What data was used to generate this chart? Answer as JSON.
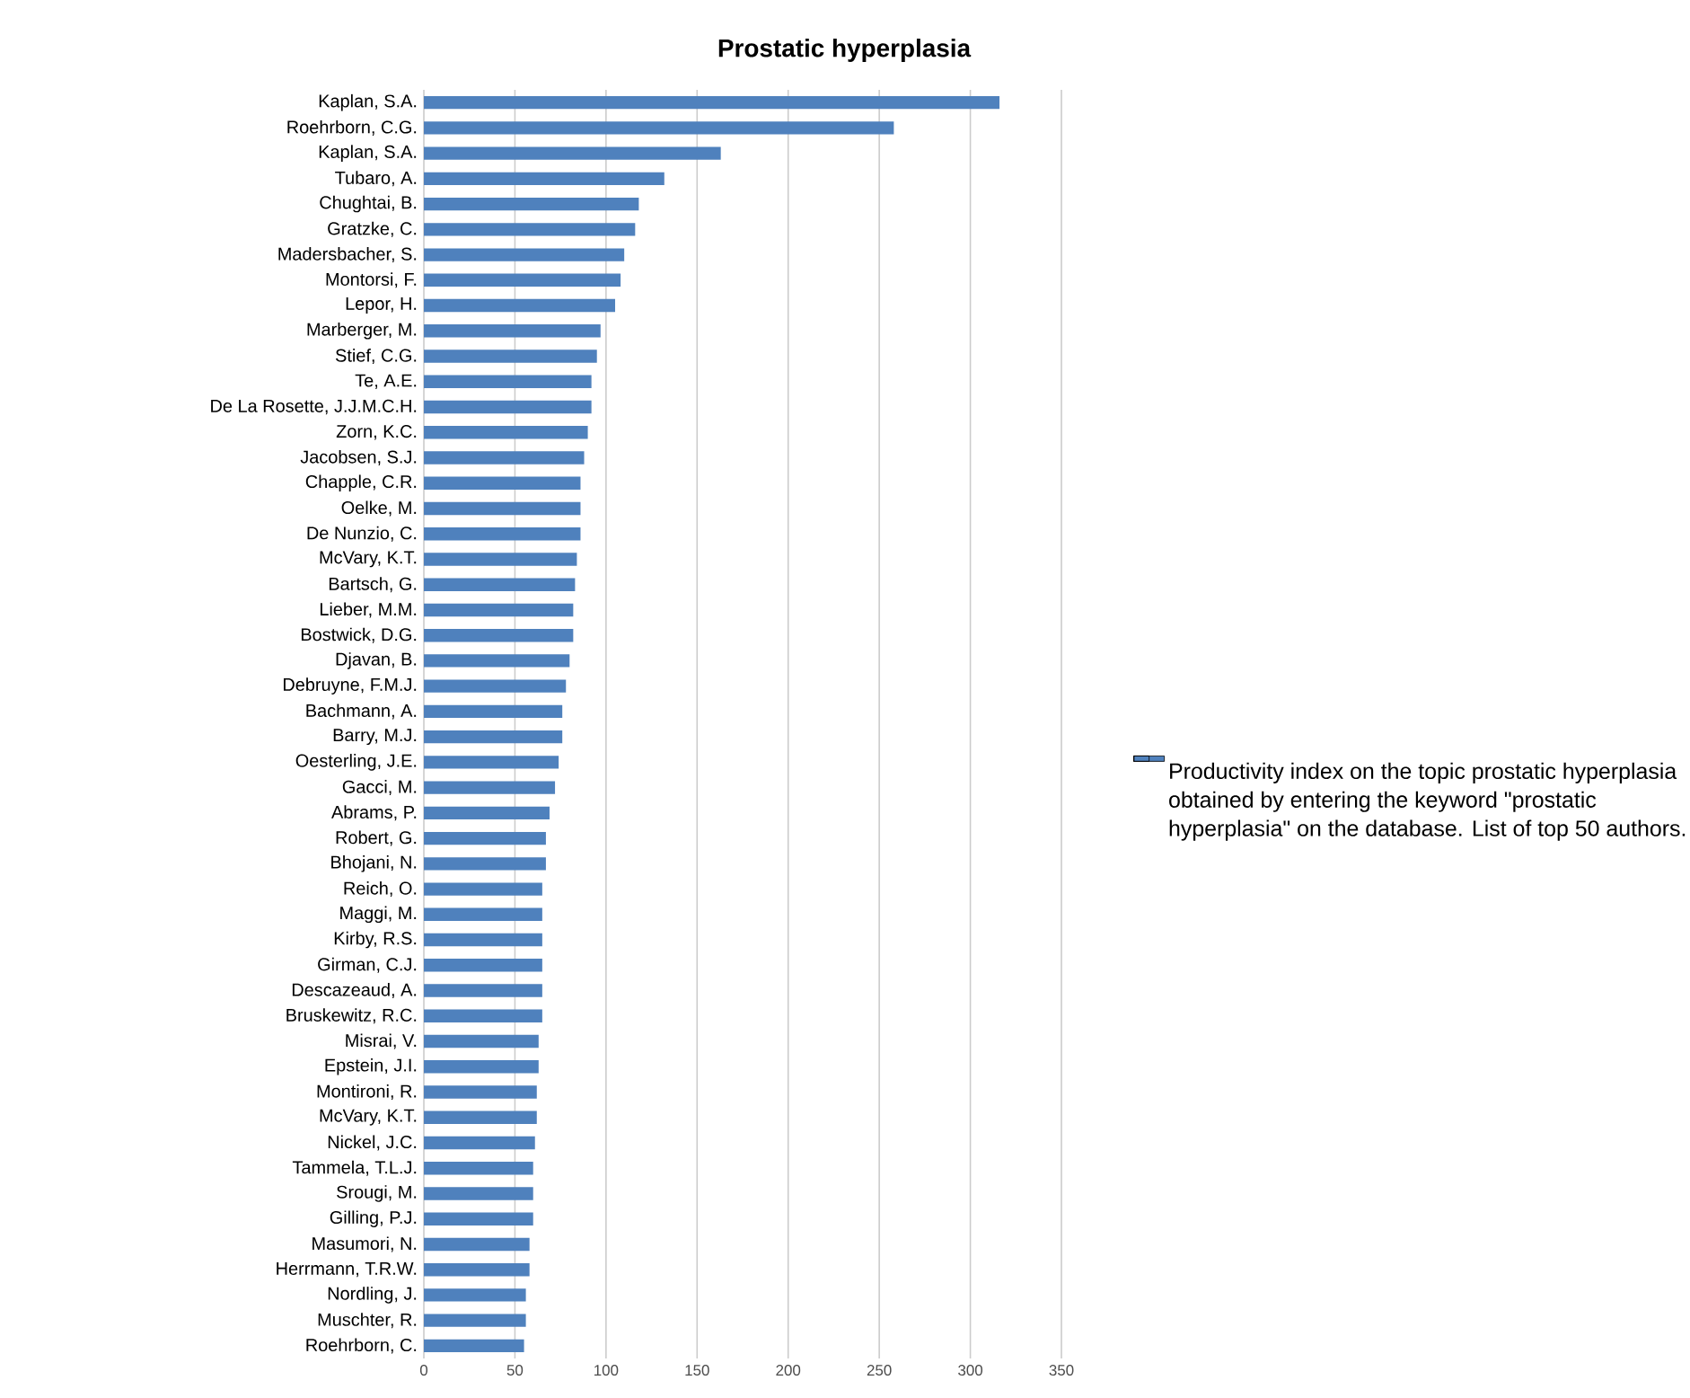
{
  "chart_data": {
    "type": "bar",
    "orientation": "horizontal",
    "title": "Prostatic hyperplasia",
    "categories": [
      "Kaplan, S.A.",
      "Roehrborn, C.G.",
      "Kaplan, S.A.",
      "Tubaro, A.",
      "Chughtai, B.",
      "Gratzke, C.",
      "Madersbacher, S.",
      "Montorsi, F.",
      "Lepor, H.",
      "Marberger, M.",
      "Stief, C.G.",
      "Te, A.E.",
      "De La Rosette, J.J.M.C.H.",
      "Zorn, K.C.",
      "Jacobsen, S.J.",
      "Chapple, C.R.",
      "Oelke, M.",
      "De Nunzio, C.",
      "McVary, K.T.",
      "Bartsch, G.",
      "Lieber, M.M.",
      "Bostwick, D.G.",
      "Djavan, B.",
      "Debruyne, F.M.J.",
      "Bachmann, A.",
      "Barry, M.J.",
      "Oesterling, J.E.",
      "Gacci, M.",
      "Abrams, P.",
      "Robert, G.",
      "Bhojani, N.",
      "Reich, O.",
      "Maggi, M.",
      "Kirby, R.S.",
      "Girman, C.J.",
      "Descazeaud, A.",
      "Bruskewitz, R.C.",
      "Misrai, V.",
      "Epstein, J.I.",
      "Montironi, R.",
      "McVary, K.T.",
      "Nickel, J.C.",
      "Tammela, T.L.J.",
      "Srougi, M.",
      "Gilling, P.J.",
      "Masumori, N.",
      "Herrmann, T.R.W.",
      "Nordling, J.",
      "Muschter, R.",
      "Roehrborn, C."
    ],
    "series": [
      {
        "name": "Productivity index on the topic prostatic hyperplasia obtained by entering the keyword \"prostatic hyperplasia\" on the database. List of top 50 authors.",
        "color": "#4f81bd",
        "values": [
          316,
          258,
          163,
          132,
          118,
          116,
          110,
          108,
          105,
          97,
          95,
          92,
          92,
          90,
          88,
          86,
          86,
          86,
          84,
          83,
          82,
          82,
          80,
          78,
          76,
          76,
          74,
          72,
          69,
          67,
          67,
          65,
          65,
          65,
          65,
          65,
          65,
          63,
          63,
          62,
          62,
          61,
          60,
          60,
          60,
          58,
          58,
          56,
          56,
          55
        ]
      }
    ],
    "xlim": [
      0,
      350
    ],
    "xticks": [
      0,
      50,
      100,
      150,
      200,
      250,
      300,
      350
    ],
    "grid": "x",
    "legend": "right"
  }
}
